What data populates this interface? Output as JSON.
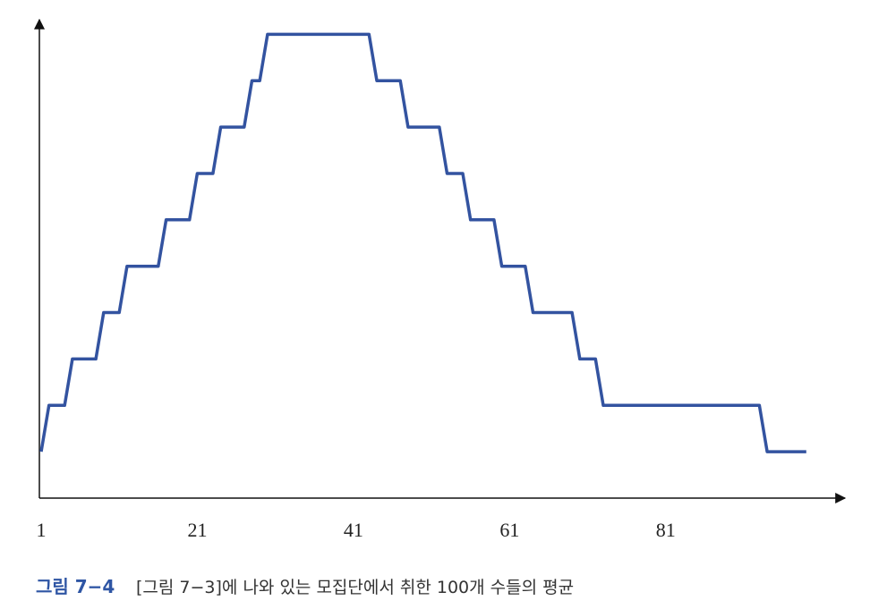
{
  "chart_data": {
    "type": "line",
    "caption_title": "그림 7−4",
    "caption": "[그림 7−3]에 나와 있는 모집단에서 취한 100개 수들의 평균",
    "x": [
      1,
      2,
      3,
      4,
      5,
      6,
      7,
      8,
      9,
      10,
      11,
      12,
      13,
      14,
      15,
      16,
      17,
      18,
      19,
      20,
      21,
      22,
      23,
      24,
      25,
      26,
      27,
      28,
      29,
      30,
      31,
      32,
      33,
      34,
      35,
      36,
      37,
      38,
      39,
      40,
      41,
      42,
      43,
      44,
      45,
      46,
      47,
      48,
      49,
      50,
      51,
      52,
      53,
      54,
      55,
      56,
      57,
      58,
      59,
      60,
      61,
      62,
      63,
      64,
      65,
      66,
      67,
      68,
      69,
      70,
      71,
      72,
      73,
      74,
      75,
      76,
      77,
      78,
      79,
      80,
      81,
      82,
      83,
      84,
      85,
      86,
      87,
      88,
      89,
      90,
      91,
      92,
      93,
      94,
      95,
      96,
      97,
      98,
      99
    ],
    "series": [
      {
        "color": "#3353a0",
        "values": [
          1,
          2,
          2,
          2,
          3,
          3,
          3,
          3,
          4,
          4,
          4,
          5,
          5,
          5,
          5,
          5,
          6,
          6,
          6,
          6,
          7,
          7,
          7,
          8,
          8,
          8,
          8,
          9,
          9,
          10,
          10,
          10,
          10,
          10,
          10,
          10,
          10,
          10,
          10,
          10,
          10,
          10,
          10,
          9,
          9,
          9,
          9,
          8,
          8,
          8,
          8,
          8,
          7,
          7,
          7,
          6,
          6,
          6,
          6,
          5,
          5,
          5,
          5,
          4,
          4,
          4,
          4,
          4,
          4,
          3,
          3,
          3,
          2,
          2,
          2,
          2,
          2,
          2,
          2,
          2,
          2,
          2,
          2,
          2,
          2,
          2,
          2,
          2,
          2,
          2,
          2,
          2,
          2,
          1,
          1,
          1,
          1,
          1,
          1
        ]
      }
    ],
    "xlim": [
      1,
      103.5
    ],
    "ylim": [
      0,
      10.2
    ],
    "xticks": [
      1,
      21,
      41,
      61,
      81
    ]
  }
}
